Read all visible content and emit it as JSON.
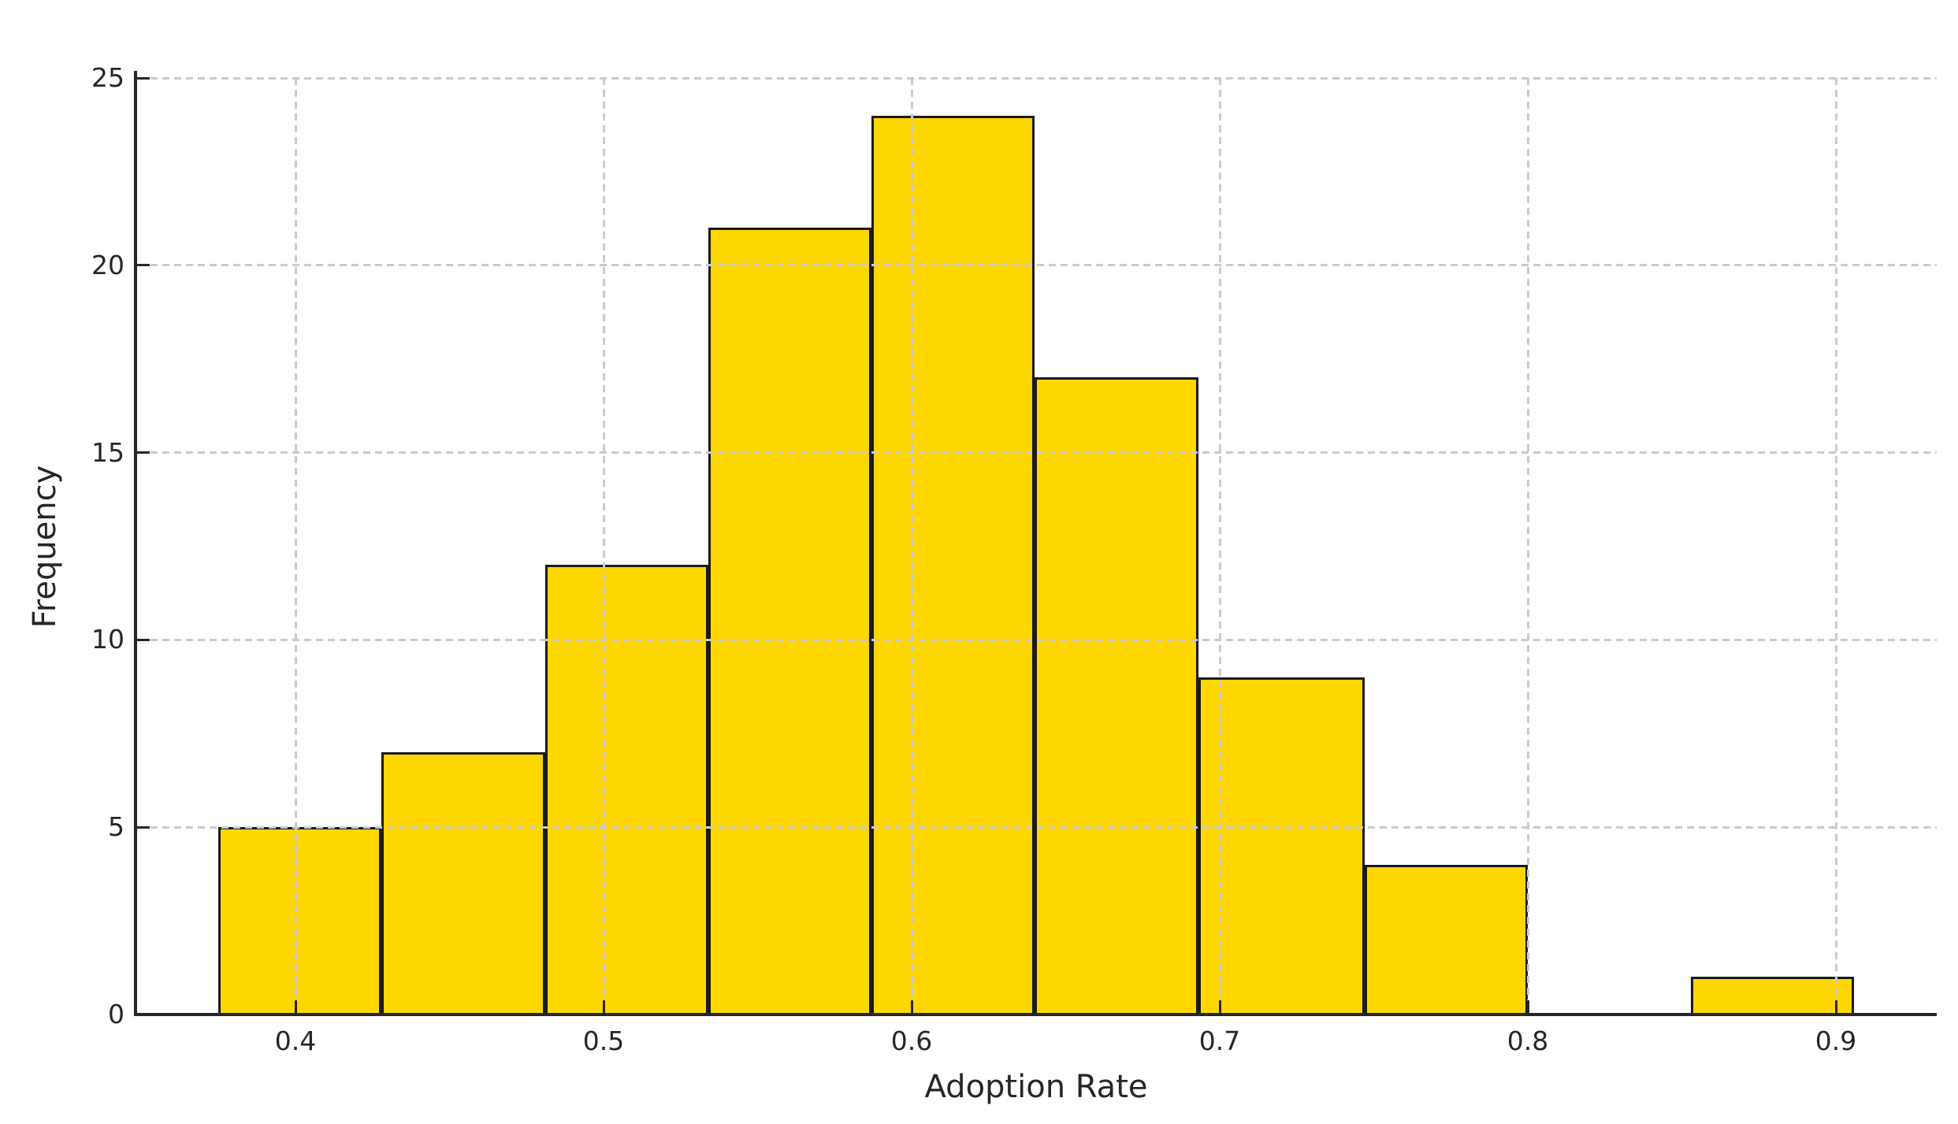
{
  "chart_data": {
    "type": "bar",
    "variant": "histogram",
    "title": "",
    "xlabel": "Adoption Rate",
    "ylabel": "Frequency",
    "bin_edges": [
      0.375,
      0.428,
      0.481,
      0.534,
      0.587,
      0.64,
      0.693,
      0.747,
      0.8,
      0.853,
      0.906
    ],
    "counts": [
      5,
      7,
      12,
      21,
      24,
      17,
      9,
      4,
      0,
      1
    ],
    "x_tick_labels": [
      "0.4",
      "0.5",
      "0.6",
      "0.7",
      "0.8",
      "0.9"
    ],
    "x_tick_values": [
      0.4,
      0.5,
      0.6,
      0.7,
      0.8,
      0.9
    ],
    "y_tick_labels": [
      "0",
      "5",
      "10",
      "15",
      "20",
      "25"
    ],
    "y_tick_values": [
      0,
      5,
      10,
      15,
      20,
      25
    ],
    "xlim": [
      0.348,
      0.933
    ],
    "ylim": [
      0,
      25
    ],
    "grid": "dashed",
    "grid_over_bars": true,
    "legend_position": "none",
    "colors": {
      "bar_fill": "#FFD700",
      "bar_edge": "#1A1A1A",
      "grid": "#CBCBCB",
      "axis": "#262626",
      "text": "#262626",
      "background": "#FFFFFF"
    }
  }
}
